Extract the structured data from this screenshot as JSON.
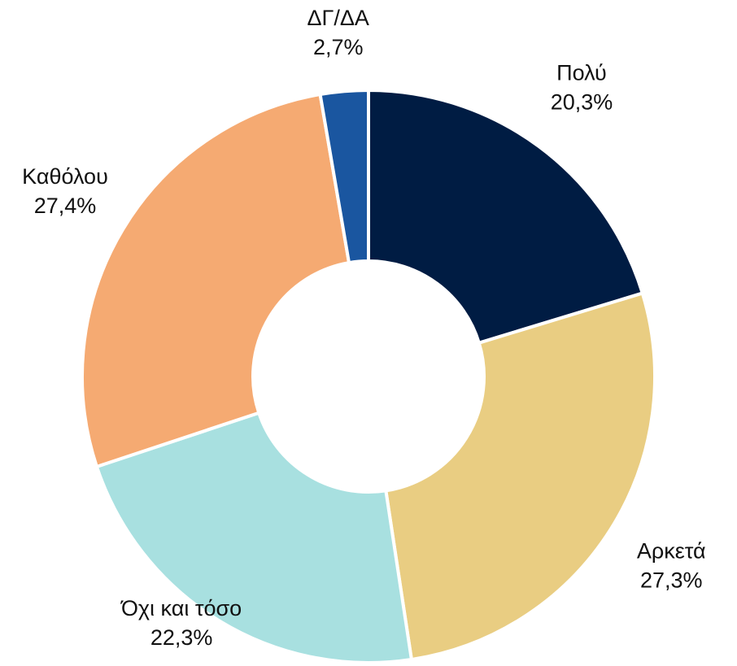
{
  "chart_data": {
    "type": "donut",
    "categories": [
      "Πολύ",
      "Αρκετά",
      "Όχι και τόσο",
      "Καθόλου",
      "ΔΓ/ΔΑ"
    ],
    "values": [
      20.3,
      27.3,
      22.3,
      27.4,
      2.7
    ],
    "value_labels": [
      "20,3%",
      "27,3%",
      "22,3%",
      "27,4%",
      "2,7%"
    ],
    "colors": [
      "#001c43",
      "#e9cd82",
      "#a8e0e0",
      "#f5aa72",
      "#1a56a0"
    ]
  }
}
